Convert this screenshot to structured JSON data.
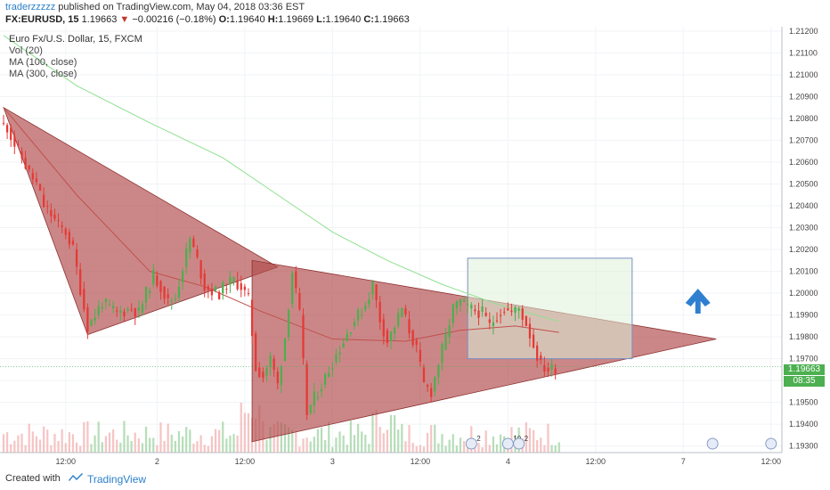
{
  "header": {
    "author": "traderzzzzz",
    "published": " published on TradingView.com, May 04, 2018 03:36 EST"
  },
  "symbol_line": {
    "symbol": "FX:EURUSD, 15",
    "last": "1.19663",
    "change": "−0.00216 (−0.18%)",
    "o_label": "O:",
    "o": "1.19640",
    "h_label": "H:",
    "h": "1.19669",
    "l_label": "L:",
    "l": "1.19640",
    "c_label": "C:",
    "c": "1.19663"
  },
  "legend": {
    "title": "Euro Fx/U.S. Dollar, 15, FXCM",
    "vol": "Vol (20)",
    "ma100": "MA (100, close)",
    "ma300": "MA (300, close)"
  },
  "price_badge": {
    "price": "1.19663",
    "countdown": "08:35"
  },
  "footer": {
    "created_with": "Created with",
    "brand": "TradingView"
  },
  "colors": {
    "up": "#4caf50",
    "down": "#e53935",
    "triangle_fill": "#b24e4e",
    "box_fill": "#dff0d8",
    "ma_green": "#8fe08f",
    "ma_red": "#c0504d",
    "arrow": "#2f7fd1"
  },
  "chart_data": {
    "type": "candlestick",
    "y_ticks": [
      "1.21200",
      "1.21100",
      "1.21000",
      "1.20900",
      "1.20800",
      "1.20700",
      "1.20600",
      "1.20500",
      "1.20400",
      "1.20300",
      "1.20200",
      "1.20100",
      "1.20000",
      "1.19900",
      "1.19800",
      "1.19700",
      "1.19600",
      "1.19500",
      "1.19400",
      "1.19300"
    ],
    "ylim": [
      1.1927,
      1.2122
    ],
    "x_ticks": [
      "12:00",
      "2",
      "12:00",
      "3",
      "12:00",
      "4",
      "12:00",
      "7",
      "12:00"
    ],
    "price_path": [
      [
        0,
        1.2078
      ],
      [
        2,
        1.2076
      ],
      [
        4,
        1.2068
      ],
      [
        6,
        1.2062
      ],
      [
        8,
        1.2055
      ],
      [
        10,
        1.205
      ],
      [
        12,
        1.204
      ],
      [
        14,
        1.2036
      ],
      [
        16,
        1.2031
      ],
      [
        18,
        1.2028
      ],
      [
        20,
        1.202
      ],
      [
        22,
        1.2002
      ],
      [
        24,
        1.1985
      ],
      [
        26,
        1.199
      ],
      [
        28,
        1.1996
      ],
      [
        30,
        1.1993
      ],
      [
        32,
        1.1991
      ],
      [
        34,
        1.1992
      ],
      [
        36,
        1.1993
      ],
      [
        38,
        1.1991
      ],
      [
        40,
        1.2
      ],
      [
        42,
        1.2008
      ],
      [
        44,
        1.2003
      ],
      [
        46,
        1.1996
      ],
      [
        48,
        1.1998
      ],
      [
        50,
        1.2012
      ],
      [
        52,
        1.2025
      ],
      [
        54,
        1.2015
      ],
      [
        56,
        1.2003
      ],
      [
        58,
        1.2001
      ],
      [
        60,
        1.2
      ],
      [
        62,
        1.2004
      ],
      [
        64,
        1.2006
      ],
      [
        66,
        1.2003
      ],
      [
        68,
        1.1997
      ],
      [
        70,
        1.1966
      ],
      [
        72,
        1.1962
      ],
      [
        74,
        1.197
      ],
      [
        76,
        1.1958
      ],
      [
        78,
        1.198
      ],
      [
        80,
        1.201
      ],
      [
        82,
        1.199
      ],
      [
        84,
        1.1945
      ],
      [
        86,
        1.1952
      ],
      [
        88,
        1.1958
      ],
      [
        90,
        1.1965
      ],
      [
        92,
        1.1972
      ],
      [
        94,
        1.1978
      ],
      [
        96,
        1.1985
      ],
      [
        98,
        1.199
      ],
      [
        100,
        1.1995
      ],
      [
        102,
        1.2004
      ],
      [
        104,
        1.1988
      ],
      [
        106,
        1.1978
      ],
      [
        108,
        1.1985
      ],
      [
        110,
        1.1993
      ],
      [
        112,
        1.1983
      ],
      [
        114,
        1.1974
      ],
      [
        116,
        1.1958
      ],
      [
        118,
        1.1955
      ],
      [
        120,
        1.1968
      ],
      [
        122,
        1.198
      ],
      [
        124,
        1.1993
      ],
      [
        126,
        1.1996
      ],
      [
        128,
        1.1993
      ],
      [
        130,
        1.1992
      ],
      [
        132,
        1.1991
      ],
      [
        134,
        1.1985
      ],
      [
        136,
        1.199
      ],
      [
        138,
        1.1993
      ],
      [
        140,
        1.1991
      ],
      [
        142,
        1.1993
      ],
      [
        144,
        1.1986
      ],
      [
        146,
        1.1976
      ],
      [
        148,
        1.1967
      ],
      [
        150,
        1.1965
      ],
      [
        152,
        1.1966
      ]
    ],
    "ma100": [
      [
        0,
        1.2085
      ],
      [
        20,
        1.2045
      ],
      [
        40,
        1.201
      ],
      [
        55,
        1.2003
      ],
      [
        70,
        1.1992
      ],
      [
        90,
        1.1979
      ],
      [
        110,
        1.1978
      ],
      [
        125,
        1.1983
      ],
      [
        140,
        1.1985
      ],
      [
        152,
        1.1982
      ]
    ],
    "ma300": [
      [
        0,
        1.2118
      ],
      [
        20,
        1.2095
      ],
      [
        40,
        1.2078
      ],
      [
        60,
        1.2062
      ],
      [
        75,
        1.2045
      ],
      [
        90,
        1.2028
      ],
      [
        105,
        1.2015
      ],
      [
        120,
        1.2004
      ],
      [
        135,
        1.1995
      ],
      [
        152,
        1.1987
      ]
    ],
    "triangle1": [
      [
        0,
        1.2085
      ],
      [
        75,
        1.2012
      ],
      [
        23,
        1.1981
      ]
    ],
    "triangle2": [
      [
        68,
        1.2015
      ],
      [
        68,
        1.1932
      ],
      [
        195,
        1.1979
      ]
    ],
    "box": {
      "x0": 127,
      "x1": 172,
      "y0": 1.2016,
      "y1": 1.197
    },
    "arrow_x": 190,
    "arrow_y": 1.1998,
    "x_tick_index": [
      17,
      42,
      66,
      90,
      114,
      138,
      162,
      186,
      210
    ]
  }
}
